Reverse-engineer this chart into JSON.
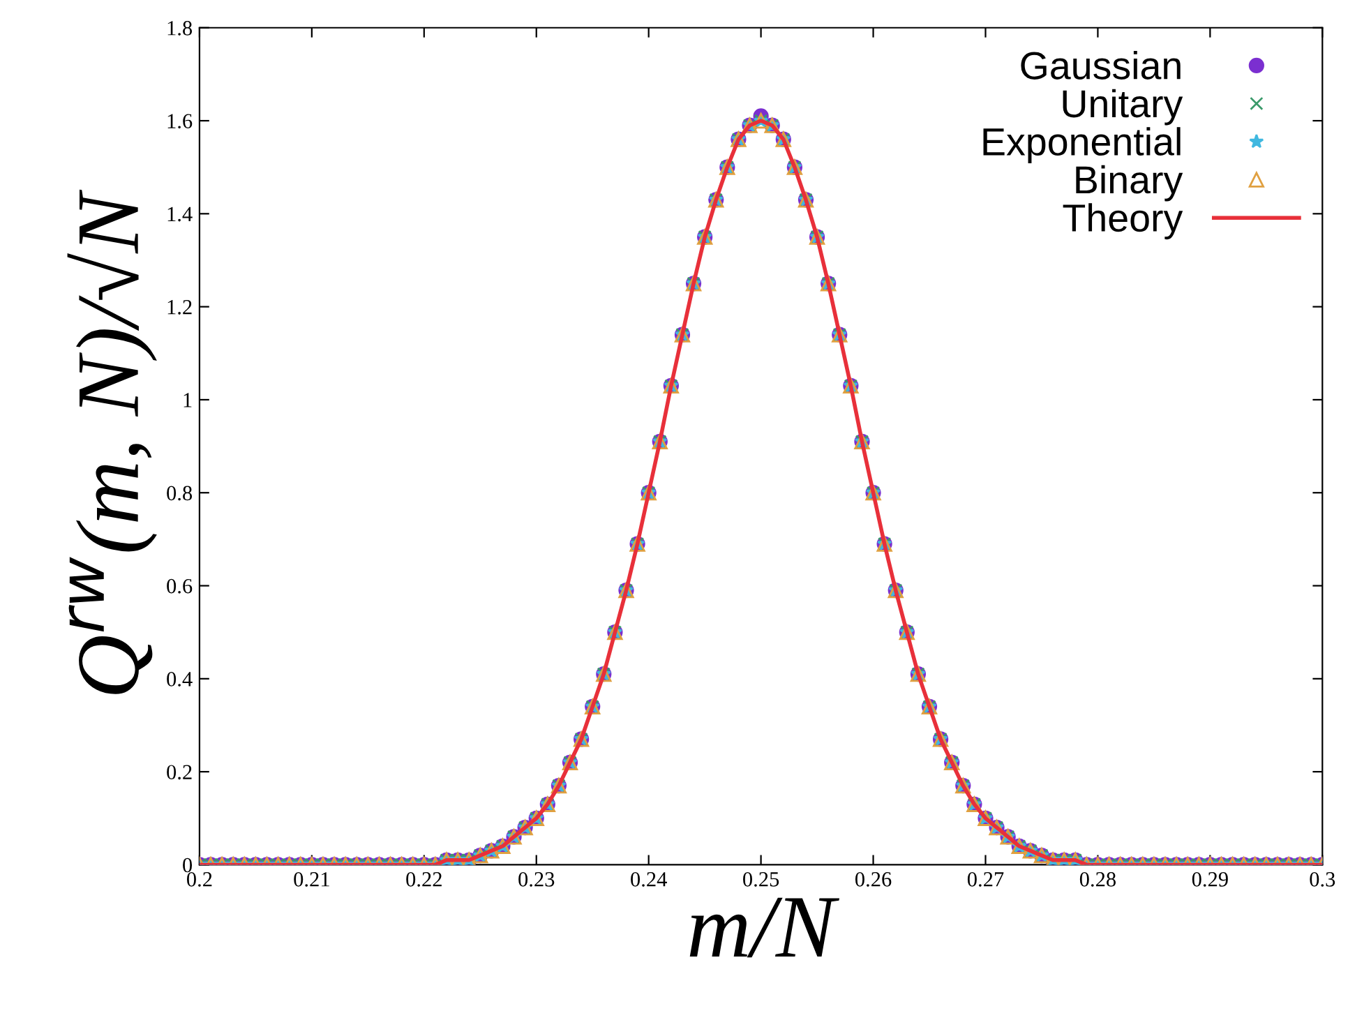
{
  "chart_data": {
    "type": "scatter",
    "xlabel": "m/N",
    "ylabel": "Q$^{rw}$(m, N)/√N",
    "x": [
      0.2,
      0.201,
      0.202,
      0.203,
      0.204,
      0.205,
      0.206,
      0.207,
      0.208,
      0.209,
      0.21,
      0.211,
      0.212,
      0.213,
      0.214,
      0.215,
      0.216,
      0.217,
      0.218,
      0.219,
      0.22,
      0.221,
      0.222,
      0.223,
      0.224,
      0.225,
      0.226,
      0.227,
      0.228,
      0.229,
      0.23,
      0.231,
      0.232,
      0.233,
      0.234,
      0.235,
      0.236,
      0.237,
      0.238,
      0.239,
      0.24,
      0.241,
      0.242,
      0.243,
      0.244,
      0.245,
      0.246,
      0.247,
      0.248,
      0.249,
      0.25,
      0.251,
      0.252,
      0.253,
      0.254,
      0.255,
      0.256,
      0.257,
      0.258,
      0.259,
      0.26,
      0.261,
      0.262,
      0.263,
      0.264,
      0.265,
      0.266,
      0.267,
      0.268,
      0.269,
      0.27,
      0.271,
      0.272,
      0.273,
      0.274,
      0.275,
      0.276,
      0.277,
      0.278,
      0.279,
      0.28,
      0.281,
      0.282,
      0.283,
      0.284,
      0.285,
      0.286,
      0.287,
      0.288,
      0.289,
      0.29,
      0.291,
      0.292,
      0.293,
      0.294,
      0.295,
      0.296,
      0.297,
      0.298,
      0.299,
      0.3
    ],
    "series": [
      {
        "name": "Gaussian",
        "color": "#7b2fd0",
        "marker": "circle",
        "values": [
          0,
          0,
          0,
          0,
          0,
          0,
          0,
          0,
          0,
          0,
          0,
          0,
          0,
          0,
          0,
          0,
          0,
          0,
          0,
          0,
          0,
          0,
          0.01,
          0.01,
          0.01,
          0.02,
          0.03,
          0.04,
          0.06,
          0.08,
          0.1,
          0.13,
          0.17,
          0.22,
          0.27,
          0.34,
          0.41,
          0.5,
          0.59,
          0.69,
          0.8,
          0.91,
          1.03,
          1.14,
          1.25,
          1.35,
          1.43,
          1.5,
          1.56,
          1.59,
          1.61,
          1.59,
          1.56,
          1.5,
          1.43,
          1.35,
          1.25,
          1.14,
          1.03,
          0.91,
          0.8,
          0.69,
          0.59,
          0.5,
          0.41,
          0.34,
          0.27,
          0.22,
          0.17,
          0.13,
          0.1,
          0.08,
          0.06,
          0.04,
          0.03,
          0.02,
          0.01,
          0.01,
          0.01,
          0,
          0,
          0,
          0,
          0,
          0,
          0,
          0,
          0,
          0,
          0,
          0,
          0,
          0,
          0,
          0,
          0,
          0,
          0,
          0,
          0,
          0
        ]
      },
      {
        "name": "Unitary",
        "color": "#3a9a6a",
        "marker": "cross",
        "values": [
          0,
          0,
          0,
          0,
          0,
          0,
          0,
          0,
          0,
          0,
          0,
          0,
          0,
          0,
          0,
          0,
          0,
          0,
          0,
          0,
          0,
          0,
          0.01,
          0.01,
          0.01,
          0.02,
          0.03,
          0.04,
          0.06,
          0.08,
          0.1,
          0.13,
          0.17,
          0.22,
          0.27,
          0.34,
          0.41,
          0.5,
          0.59,
          0.69,
          0.8,
          0.91,
          1.03,
          1.14,
          1.25,
          1.35,
          1.43,
          1.5,
          1.56,
          1.59,
          1.6,
          1.59,
          1.56,
          1.5,
          1.43,
          1.35,
          1.25,
          1.14,
          1.03,
          0.91,
          0.8,
          0.69,
          0.59,
          0.5,
          0.41,
          0.34,
          0.27,
          0.22,
          0.17,
          0.13,
          0.1,
          0.08,
          0.06,
          0.04,
          0.03,
          0.02,
          0.01,
          0.01,
          0.01,
          0,
          0,
          0,
          0,
          0,
          0,
          0,
          0,
          0,
          0,
          0,
          0,
          0,
          0,
          0,
          0,
          0,
          0,
          0,
          0,
          0,
          0
        ]
      },
      {
        "name": "Exponential",
        "color": "#40b8e0",
        "marker": "star",
        "values": [
          0,
          0,
          0,
          0,
          0,
          0,
          0,
          0,
          0,
          0,
          0,
          0,
          0,
          0,
          0,
          0,
          0,
          0,
          0,
          0,
          0,
          0,
          0.01,
          0.01,
          0.01,
          0.02,
          0.03,
          0.04,
          0.06,
          0.08,
          0.1,
          0.13,
          0.17,
          0.22,
          0.27,
          0.34,
          0.41,
          0.5,
          0.59,
          0.69,
          0.8,
          0.91,
          1.03,
          1.14,
          1.25,
          1.35,
          1.43,
          1.5,
          1.56,
          1.59,
          1.6,
          1.59,
          1.56,
          1.5,
          1.43,
          1.35,
          1.25,
          1.14,
          1.03,
          0.91,
          0.8,
          0.69,
          0.59,
          0.5,
          0.41,
          0.34,
          0.27,
          0.22,
          0.17,
          0.13,
          0.1,
          0.08,
          0.06,
          0.04,
          0.03,
          0.02,
          0.01,
          0.01,
          0.01,
          0,
          0,
          0,
          0,
          0,
          0,
          0,
          0,
          0,
          0,
          0,
          0,
          0,
          0,
          0,
          0,
          0,
          0,
          0,
          0,
          0,
          0
        ]
      },
      {
        "name": "Binary",
        "color": "#e0a040",
        "marker": "triangle",
        "values": [
          0,
          0,
          0,
          0,
          0,
          0,
          0,
          0,
          0,
          0,
          0,
          0,
          0,
          0,
          0,
          0,
          0,
          0,
          0,
          0,
          0,
          0,
          0.01,
          0.01,
          0.01,
          0.02,
          0.03,
          0.04,
          0.06,
          0.08,
          0.1,
          0.13,
          0.17,
          0.22,
          0.27,
          0.34,
          0.41,
          0.5,
          0.59,
          0.69,
          0.8,
          0.91,
          1.03,
          1.14,
          1.25,
          1.35,
          1.43,
          1.5,
          1.56,
          1.59,
          1.6,
          1.59,
          1.56,
          1.5,
          1.43,
          1.35,
          1.25,
          1.14,
          1.03,
          0.91,
          0.8,
          0.69,
          0.59,
          0.5,
          0.41,
          0.34,
          0.27,
          0.22,
          0.17,
          0.13,
          0.1,
          0.08,
          0.06,
          0.04,
          0.03,
          0.02,
          0.01,
          0.01,
          0.01,
          0,
          0,
          0,
          0,
          0,
          0,
          0,
          0,
          0,
          0,
          0,
          0,
          0,
          0,
          0,
          0,
          0,
          0,
          0,
          0,
          0,
          0
        ]
      },
      {
        "name": "Theory",
        "type": "line",
        "color": "#e8303a",
        "line_style": "solid",
        "marker": "none",
        "values": [
          0,
          0,
          0,
          0,
          0,
          0,
          0,
          0,
          0,
          0,
          0,
          0,
          0,
          0,
          0,
          0,
          0,
          0,
          0,
          0,
          0,
          0,
          0.01,
          0.01,
          0.01,
          0.02,
          0.03,
          0.04,
          0.06,
          0.08,
          0.1,
          0.13,
          0.17,
          0.22,
          0.27,
          0.34,
          0.41,
          0.5,
          0.59,
          0.69,
          0.8,
          0.91,
          1.03,
          1.14,
          1.25,
          1.35,
          1.43,
          1.5,
          1.56,
          1.59,
          1.6,
          1.59,
          1.56,
          1.5,
          1.43,
          1.35,
          1.25,
          1.14,
          1.03,
          0.91,
          0.8,
          0.69,
          0.59,
          0.5,
          0.41,
          0.34,
          0.27,
          0.22,
          0.17,
          0.13,
          0.1,
          0.08,
          0.06,
          0.04,
          0.03,
          0.02,
          0.01,
          0.01,
          0.01,
          0,
          0,
          0,
          0,
          0,
          0,
          0,
          0,
          0,
          0,
          0,
          0,
          0,
          0,
          0,
          0,
          0,
          0,
          0,
          0,
          0,
          0
        ]
      }
    ],
    "xlim": [
      0.2,
      0.3
    ],
    "xticks": [
      0.2,
      0.21,
      0.22,
      0.23,
      0.24,
      0.25,
      0.26,
      0.27,
      0.28,
      0.29,
      0.3
    ],
    "ylim": [
      0,
      1.8
    ],
    "yticks": [
      0,
      0.2,
      0.4,
      0.6,
      0.8,
      1,
      1.2,
      1.4,
      1.6,
      1.8
    ],
    "grid": false,
    "legend": "top right"
  }
}
